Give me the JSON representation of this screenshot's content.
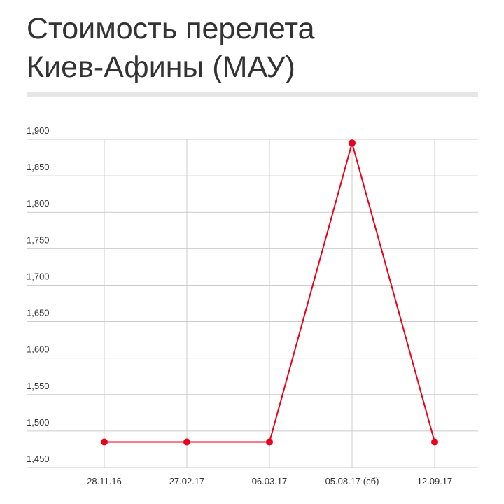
{
  "chart_data": {
    "type": "line",
    "title": "Стоимость перелета Киев-Афины (МАУ)",
    "categories": [
      "28.11.16",
      "27.02.17",
      "06.03.17",
      "05.08.17 (сб)",
      "12.09.17"
    ],
    "series": [
      {
        "name": "Стоимость",
        "color": "#e8001c",
        "values": [
          1485,
          1485,
          1485,
          1895,
          1485
        ]
      }
    ],
    "ylim": [
      1450,
      1900
    ],
    "yticks": [
      {
        "value": 1450,
        "label": "1,450"
      },
      {
        "value": 1500,
        "label": "1,500"
      },
      {
        "value": 1550,
        "label": "1,550"
      },
      {
        "value": 1600,
        "label": "1,600"
      },
      {
        "value": 1650,
        "label": "1,650"
      },
      {
        "value": 1700,
        "label": "1,700"
      },
      {
        "value": 1750,
        "label": "1,750"
      },
      {
        "value": 1800,
        "label": "1,800"
      },
      {
        "value": 1850,
        "label": "1,850"
      },
      {
        "value": 1900,
        "label": "1,900"
      }
    ],
    "grid": true
  }
}
